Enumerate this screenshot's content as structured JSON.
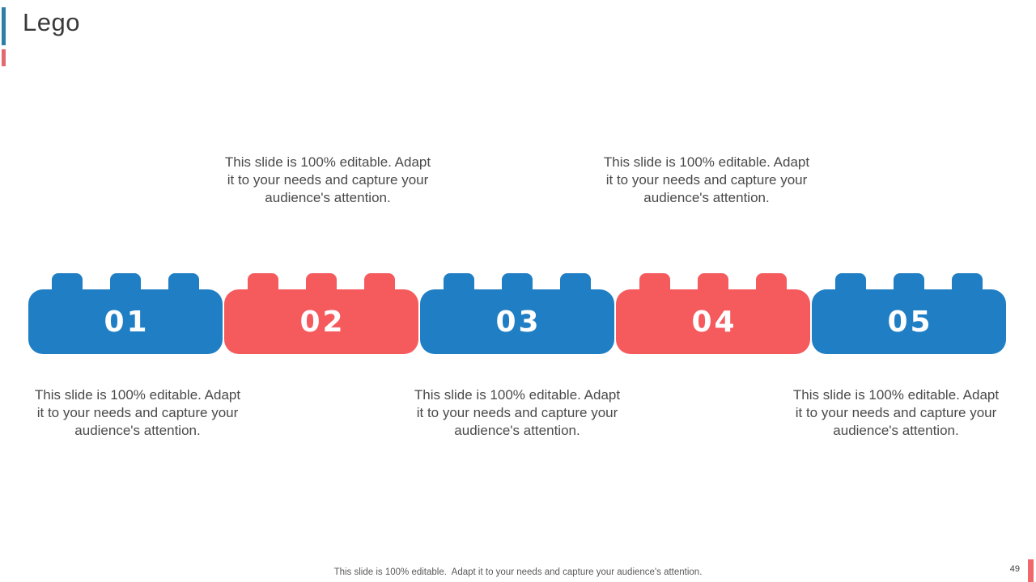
{
  "slide": {
    "title": "Lego",
    "page_number": "49",
    "footer": "This slide is 100% editable.  Adapt it to your needs and capture your audience's attention."
  },
  "captions": {
    "top": [
      "This slide is 100% editable. Adapt\nit to your needs and capture your\naudience's attention.",
      "This slide is 100% editable. Adapt\nit to your needs and capture your\naudience's attention."
    ],
    "bottom": [
      "This slide is 100% editable. Adapt\nit to your needs and capture your\naudience's attention.",
      "This slide is 100% editable. Adapt\nit to your needs and capture your\naudience's attention.",
      "This slide is 100% editable. Adapt\nit to your needs and capture your\naudience's attention."
    ]
  },
  "bricks": [
    {
      "number": "01",
      "color": "#1f7ec4"
    },
    {
      "number": "02",
      "color": "#f55a5d"
    },
    {
      "number": "03",
      "color": "#1f7ec4"
    },
    {
      "number": "04",
      "color": "#f55a5d"
    },
    {
      "number": "05",
      "color": "#1f7ec4"
    }
  ],
  "colors": {
    "brick_blue": "#1f7ec4",
    "brick_red": "#f55a5d",
    "title_accent_blue": "#2d7fa5",
    "title_accent_red": "#e26a6e",
    "corner_accent_red": "#f0686b",
    "body_text": "#4a4a4a",
    "title_text": "#3a3a3a"
  }
}
